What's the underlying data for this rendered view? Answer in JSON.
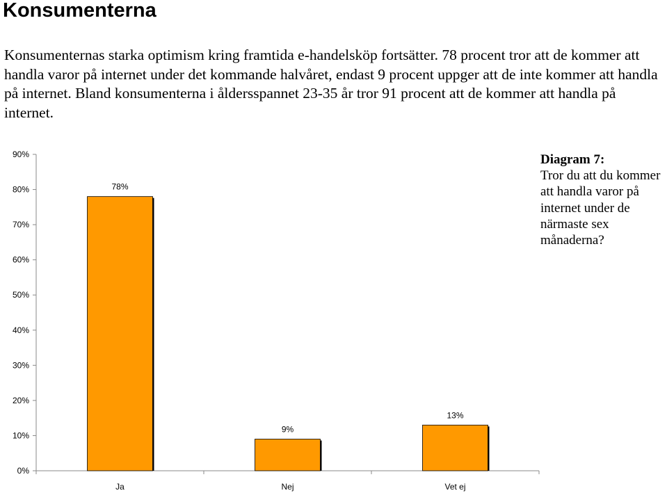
{
  "page": {
    "heading": "Konsumenterna",
    "intro": "Konsumenternas starka optimism kring framtida e-handelsköp fortsätter. 78 procent tror att de kommer att handla varor på internet under det kommande halvåret, endast 9 procent uppger att de inte kommer att handla på internet. Bland konsumenterna i åldersspannet 23-35 år tror 91 procent att de kommer att handla på internet."
  },
  "caption": {
    "title": "Diagram 7:",
    "body": "Tror du att du kommer att handla varor på internet under de närmaste sex månaderna?"
  },
  "chart_data": {
    "type": "bar",
    "categories": [
      "Ja",
      "Nej",
      "Vet ej"
    ],
    "values": [
      78,
      9,
      13
    ],
    "data_labels": [
      "78%",
      "9%",
      "13%"
    ],
    "yticks": [
      "0%",
      "10%",
      "20%",
      "30%",
      "40%",
      "50%",
      "60%",
      "70%",
      "80%",
      "90%"
    ],
    "ylim": [
      0,
      90
    ],
    "title": "",
    "xlabel": "",
    "ylabel": "",
    "grid": false,
    "legend": "none",
    "bar_color": "#FF9900",
    "bar_outline": "#000000"
  }
}
